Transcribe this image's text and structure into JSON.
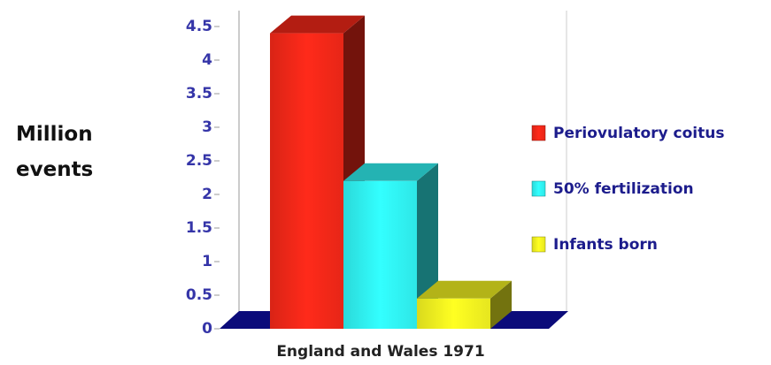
{
  "chart_data": {
    "type": "bar3d",
    "y_label": "Million events",
    "categories": [
      "England and Wales 1971"
    ],
    "series": [
      {
        "name": "Periovulatory coitus",
        "color": "#ff2a1a",
        "values": [
          4.4
        ]
      },
      {
        "name": "50% fertilization",
        "color": "#33ffff",
        "values": [
          2.2
        ]
      },
      {
        "name": "Infants born",
        "color": "#ffff22",
        "values": [
          0.45
        ]
      }
    ],
    "ylim": [
      0,
      4.5
    ],
    "yticks": [
      0,
      0.5,
      1,
      1.5,
      2,
      2.5,
      3,
      3.5,
      4,
      4.5
    ]
  }
}
